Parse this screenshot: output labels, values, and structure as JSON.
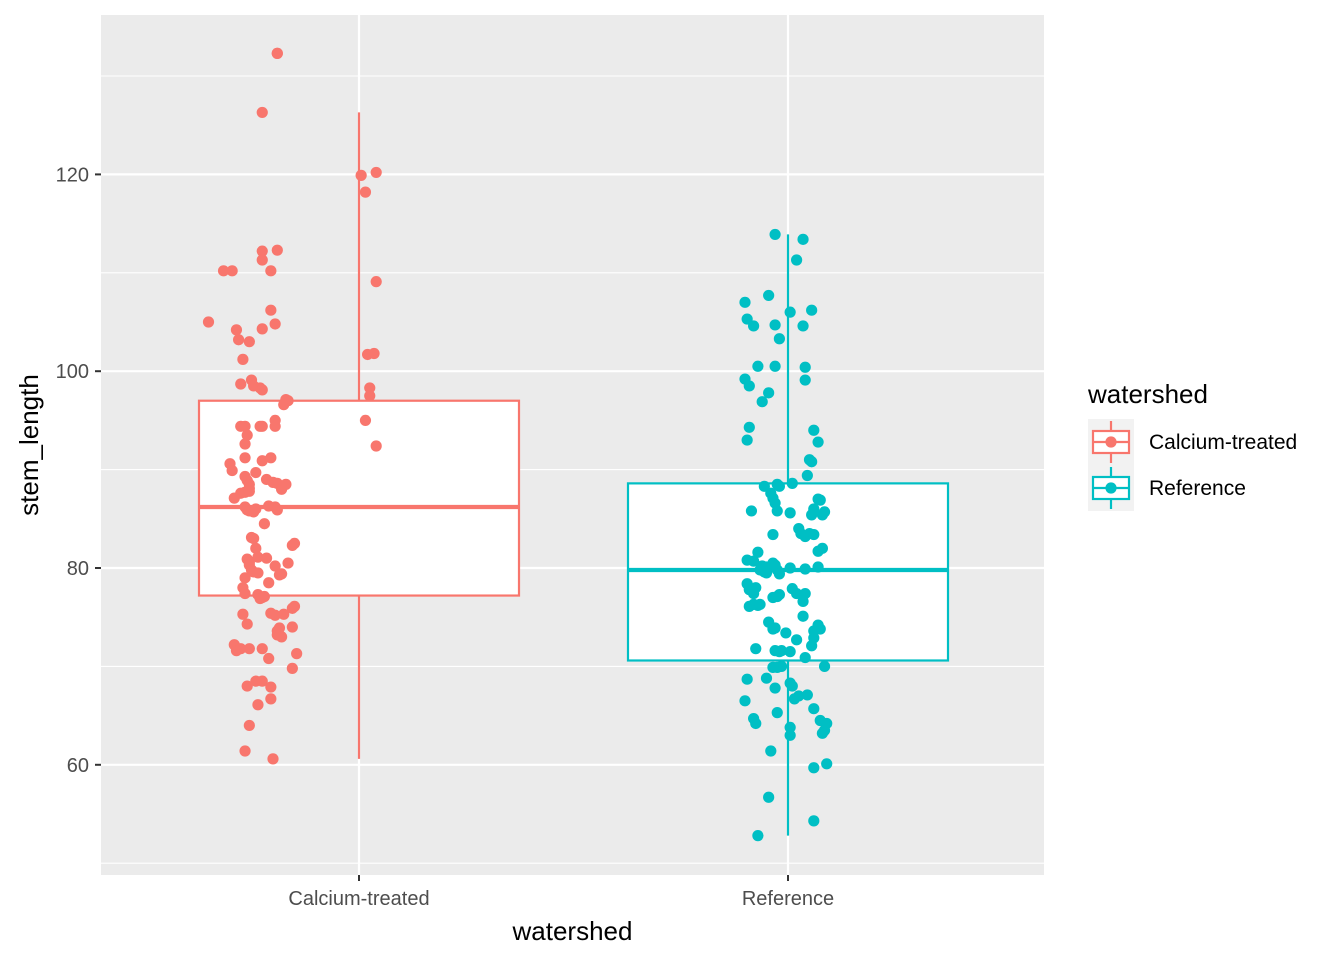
{
  "chart_data": {
    "type": "boxplot",
    "xlabel": "watershed",
    "ylabel": "stem_length",
    "categories": [
      "Calcium-treated",
      "Reference"
    ],
    "ylim": [
      48.8,
      136.2
    ],
    "yticks": [
      60,
      80,
      100,
      120
    ],
    "grid": true,
    "legend": {
      "title": "watershed",
      "placement": "right",
      "entries": [
        "Calcium-treated",
        "Reference"
      ]
    },
    "colors": {
      "Calcium-treated": "#F8766D",
      "Reference": "#00BFC4",
      "panel_background": "#EBEBEB",
      "gridline": "#FFFFFF"
    },
    "series": [
      {
        "name": "Calcium-treated",
        "box": {
          "lower_whisker": 60.6,
          "q1": 77.2,
          "median": 86.2,
          "q3": 97.0,
          "upper_whisker": 126.3
        },
        "outliers": [
          132.3,
          132.3
        ],
        "points": [
          [
            -0.38,
            132.3
          ],
          [
            -0.38,
            132.3
          ],
          [
            -0.45,
            126.3
          ],
          [
            0.01,
            119.9
          ],
          [
            0.08,
            120.2
          ],
          [
            0.03,
            118.2
          ],
          [
            -0.45,
            112.2
          ],
          [
            -0.38,
            112.3
          ],
          [
            -0.63,
            110.2
          ],
          [
            -0.59,
            110.2
          ],
          [
            -0.41,
            110.2
          ],
          [
            -0.45,
            111.3
          ],
          [
            0.08,
            109.1
          ],
          [
            -0.7,
            105.0
          ],
          [
            -0.57,
            104.2
          ],
          [
            -0.41,
            106.2
          ],
          [
            -0.45,
            104.3
          ],
          [
            -0.39,
            104.8
          ],
          [
            -0.56,
            103.2
          ],
          [
            -0.51,
            103.0
          ],
          [
            -0.54,
            101.2
          ],
          [
            0.07,
            101.8
          ],
          [
            0.04,
            101.7
          ],
          [
            -0.55,
            98.7
          ],
          [
            -0.5,
            99.1
          ],
          [
            -0.49,
            98.5
          ],
          [
            -0.46,
            98.3
          ],
          [
            -0.45,
            98.1
          ],
          [
            0.05,
            98.3
          ],
          [
            0.05,
            97.5
          ],
          [
            -0.34,
            97.1
          ],
          [
            -0.35,
            96.6
          ],
          [
            -0.33,
            97.0
          ],
          [
            -0.34,
            97.1
          ],
          [
            -0.55,
            94.4
          ],
          [
            -0.53,
            94.4
          ],
          [
            -0.46,
            94.4
          ],
          [
            -0.45,
            94.4
          ],
          [
            -0.39,
            94.4
          ],
          [
            -0.52,
            93.5
          ],
          [
            -0.53,
            92.6
          ],
          [
            -0.39,
            95.0
          ],
          [
            0.03,
            95.0
          ],
          [
            0.08,
            92.4
          ],
          [
            -0.6,
            90.6
          ],
          [
            -0.59,
            89.9
          ],
          [
            -0.53,
            91.2
          ],
          [
            -0.45,
            90.9
          ],
          [
            -0.41,
            91.2
          ],
          [
            -0.53,
            89.3
          ],
          [
            -0.52,
            88.9
          ],
          [
            -0.51,
            88.5
          ],
          [
            -0.51,
            88.1
          ],
          [
            -0.58,
            87.1
          ],
          [
            -0.55,
            87.6
          ],
          [
            -0.53,
            87.7
          ],
          [
            -0.51,
            87.8
          ],
          [
            -0.48,
            89.7
          ],
          [
            -0.43,
            89.0
          ],
          [
            -0.4,
            88.7
          ],
          [
            -0.38,
            88.6
          ],
          [
            -0.36,
            88.0
          ],
          [
            -0.34,
            88.5
          ],
          [
            -0.53,
            86.2
          ],
          [
            -0.52,
            85.9
          ],
          [
            -0.51,
            85.8
          ],
          [
            -0.49,
            85.7
          ],
          [
            -0.48,
            86.0
          ],
          [
            -0.44,
            84.5
          ],
          [
            -0.42,
            86.3
          ],
          [
            -0.39,
            86.2
          ],
          [
            -0.38,
            85.9
          ],
          [
            -0.5,
            83.1
          ],
          [
            -0.49,
            83.0
          ],
          [
            -0.48,
            82.0
          ],
          [
            -0.47,
            81.1
          ],
          [
            -0.43,
            81.0
          ],
          [
            -0.52,
            80.9
          ],
          [
            -0.51,
            80.6
          ],
          [
            -0.51,
            80.3
          ],
          [
            -0.5,
            79.8
          ],
          [
            -0.49,
            79.6
          ],
          [
            -0.47,
            79.5
          ],
          [
            -0.53,
            79.0
          ],
          [
            -0.54,
            78.0
          ],
          [
            -0.42,
            78.5
          ],
          [
            -0.39,
            80.2
          ],
          [
            -0.37,
            79.3
          ],
          [
            -0.36,
            79.4
          ],
          [
            -0.33,
            80.5
          ],
          [
            -0.31,
            82.3
          ],
          [
            -0.3,
            82.5
          ],
          [
            -0.53,
            77.4
          ],
          [
            -0.47,
            77.3
          ],
          [
            -0.46,
            76.9
          ],
          [
            -0.45,
            77.0
          ],
          [
            -0.44,
            77.1
          ],
          [
            -0.54,
            75.3
          ],
          [
            -0.52,
            74.3
          ],
          [
            -0.41,
            75.4
          ],
          [
            -0.39,
            75.2
          ],
          [
            -0.38,
            73.6
          ],
          [
            -0.37,
            73.9
          ],
          [
            -0.35,
            75.3
          ],
          [
            -0.31,
            75.9
          ],
          [
            -0.3,
            76.1
          ],
          [
            -0.31,
            74.0
          ],
          [
            -0.58,
            72.2
          ],
          [
            -0.57,
            71.6
          ],
          [
            -0.55,
            71.8
          ],
          [
            -0.51,
            71.8
          ],
          [
            -0.45,
            71.8
          ],
          [
            -0.42,
            70.8
          ],
          [
            -0.38,
            73.2
          ],
          [
            -0.36,
            73.0
          ],
          [
            -0.31,
            69.8
          ],
          [
            -0.29,
            71.3
          ],
          [
            -0.52,
            68.0
          ],
          [
            -0.48,
            68.5
          ],
          [
            -0.45,
            68.5
          ],
          [
            -0.41,
            67.9
          ],
          [
            -0.41,
            66.7
          ],
          [
            -0.47,
            66.1
          ],
          [
            -0.51,
            64.0
          ],
          [
            -0.53,
            61.4
          ],
          [
            -0.4,
            60.6
          ]
        ]
      },
      {
        "name": "Reference",
        "box": {
          "lower_whisker": 52.8,
          "q1": 70.6,
          "median": 79.8,
          "q3": 88.6,
          "upper_whisker": 113.9
        },
        "outliers": [],
        "points": [
          [
            -0.06,
            113.9
          ],
          [
            0.07,
            113.4
          ],
          [
            0.04,
            111.3
          ],
          [
            0.11,
            106.2
          ],
          [
            -0.2,
            107.0
          ],
          [
            -0.19,
            105.3
          ],
          [
            -0.16,
            104.6
          ],
          [
            -0.09,
            107.7
          ],
          [
            -0.06,
            104.7
          ],
          [
            -0.04,
            103.3
          ],
          [
            0.01,
            106.0
          ],
          [
            0.07,
            104.6
          ],
          [
            0.08,
            100.4
          ],
          [
            -0.2,
            99.2
          ],
          [
            -0.18,
            98.5
          ],
          [
            -0.14,
            100.5
          ],
          [
            -0.06,
            100.5
          ],
          [
            -0.12,
            96.9
          ],
          [
            -0.09,
            97.8
          ],
          [
            0.08,
            99.1
          ],
          [
            -0.18,
            94.3
          ],
          [
            -0.19,
            93.0
          ],
          [
            0.12,
            94.0
          ],
          [
            0.14,
            92.8
          ],
          [
            -0.11,
            88.3
          ],
          [
            -0.05,
            88.5
          ],
          [
            -0.04,
            88.3
          ],
          [
            0.02,
            88.6
          ],
          [
            0.09,
            89.4
          ],
          [
            0.1,
            91.0
          ],
          [
            0.11,
            90.8
          ],
          [
            -0.17,
            85.8
          ],
          [
            -0.08,
            87.6
          ],
          [
            -0.07,
            87.1
          ],
          [
            -0.06,
            86.6
          ],
          [
            -0.05,
            85.8
          ],
          [
            -0.07,
            83.4
          ],
          [
            0.01,
            85.6
          ],
          [
            0.05,
            84.0
          ],
          [
            0.06,
            83.5
          ],
          [
            0.08,
            83.2
          ],
          [
            0.11,
            85.4
          ],
          [
            0.12,
            86.0
          ],
          [
            0.14,
            87.0
          ],
          [
            0.15,
            86.9
          ],
          [
            0.16,
            85.4
          ],
          [
            0.17,
            85.7
          ],
          [
            0.1,
            83.5
          ],
          [
            0.12,
            83.4
          ],
          [
            0.14,
            81.7
          ],
          [
            0.16,
            82.0
          ],
          [
            -0.19,
            80.8
          ],
          [
            -0.16,
            80.7
          ],
          [
            -0.14,
            81.6
          ],
          [
            -0.12,
            80.2
          ],
          [
            -0.1,
            80.1
          ],
          [
            -0.07,
            80.5
          ],
          [
            -0.06,
            80.3
          ],
          [
            -0.05,
            79.8
          ],
          [
            -0.04,
            79.4
          ],
          [
            0.01,
            80.0
          ],
          [
            0.08,
            79.9
          ],
          [
            0.14,
            80.1
          ],
          [
            -0.19,
            78.4
          ],
          [
            -0.18,
            77.8
          ],
          [
            -0.16,
            77.4
          ],
          [
            -0.15,
            78.0
          ],
          [
            -0.13,
            79.8
          ],
          [
            -0.11,
            79.6
          ],
          [
            -0.1,
            79.5
          ],
          [
            -0.07,
            77.0
          ],
          [
            -0.05,
            77.1
          ],
          [
            -0.04,
            77.3
          ],
          [
            0.02,
            77.9
          ],
          [
            0.04,
            77.4
          ],
          [
            0.07,
            76.6
          ],
          [
            0.08,
            77.4
          ],
          [
            -0.18,
            76.1
          ],
          [
            -0.16,
            76.3
          ],
          [
            -0.14,
            76.2
          ],
          [
            -0.13,
            76.3
          ],
          [
            0.07,
            75.1
          ],
          [
            -0.09,
            74.5
          ],
          [
            -0.07,
            73.8
          ],
          [
            -0.06,
            73.9
          ],
          [
            -0.01,
            73.4
          ],
          [
            0.04,
            72.7
          ],
          [
            0.12,
            73.6
          ],
          [
            0.14,
            74.2
          ],
          [
            0.15,
            73.8
          ],
          [
            0.12,
            72.9
          ],
          [
            -0.15,
            71.8
          ],
          [
            -0.06,
            71.6
          ],
          [
            -0.04,
            71.5
          ],
          [
            -0.03,
            71.6
          ],
          [
            0.01,
            71.5
          ],
          [
            0.08,
            70.9
          ],
          [
            0.11,
            72.1
          ],
          [
            0.17,
            70.0
          ],
          [
            -0.19,
            68.7
          ],
          [
            -0.1,
            68.8
          ],
          [
            -0.05,
            69.9
          ],
          [
            0.01,
            68.3
          ],
          [
            0.02,
            68.0
          ],
          [
            -0.03,
            70.0
          ],
          [
            -0.07,
            69.9
          ],
          [
            -0.06,
            67.8
          ],
          [
            0.09,
            67.1
          ],
          [
            -0.2,
            66.5
          ],
          [
            -0.16,
            64.7
          ],
          [
            -0.15,
            64.2
          ],
          [
            -0.05,
            65.3
          ],
          [
            0.03,
            66.7
          ],
          [
            0.05,
            67.0
          ],
          [
            0.12,
            65.7
          ],
          [
            0.15,
            64.5
          ],
          [
            0.16,
            63.2
          ],
          [
            0.17,
            63.5
          ],
          [
            0.18,
            64.2
          ],
          [
            0.01,
            63.8
          ],
          [
            0.01,
            63.0
          ],
          [
            -0.08,
            61.4
          ],
          [
            0.12,
            59.7
          ],
          [
            0.18,
            60.1
          ],
          [
            -0.09,
            56.7
          ],
          [
            0.12,
            54.3
          ],
          [
            -0.14,
            52.8
          ]
        ]
      }
    ]
  }
}
